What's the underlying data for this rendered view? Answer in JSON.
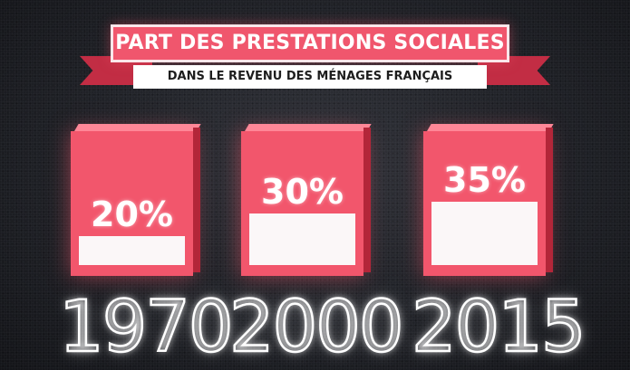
{
  "chart_data": {
    "type": "bar",
    "title": "PART DES PRESTATIONS SOCIALES",
    "subtitle": "DANS LE REVENU DES MÉNAGES FRANÇAIS",
    "categories": [
      "1970",
      "2000",
      "2015"
    ],
    "values": [
      20,
      30,
      35
    ],
    "value_labels": [
      "20%",
      "30%",
      "35%"
    ],
    "ylim": [
      0,
      100
    ],
    "grid": false,
    "legend": "none"
  },
  "colors": {
    "bar": "#f2566c",
    "bar_fill": "#fbf7f8",
    "ribbon": "#c22d44",
    "background": "#23252b",
    "text": "#ffffff"
  }
}
